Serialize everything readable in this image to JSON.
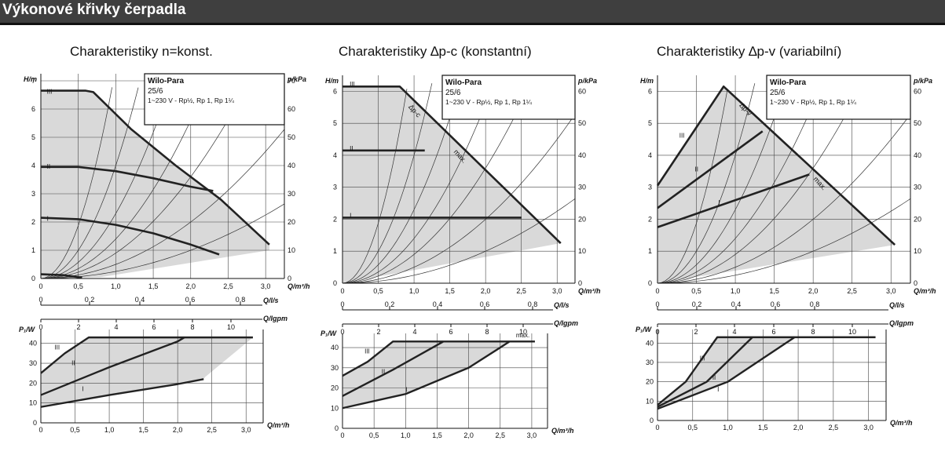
{
  "header": {
    "title": "Výkonové křivky čerpadla"
  },
  "colors": {
    "fill": "#d9d9d9",
    "curve": "#222222",
    "grid": "#444444"
  },
  "panels": [
    {
      "title": "Charakteristiky n=konst.",
      "label_box": {
        "brand": "Wilo-Para",
        "model": "25/6",
        "spec": "1~230 V - Rp½, Rp 1, Rp 1¼"
      }
    },
    {
      "title": "Charakteristiky ∆p-c (konstantní)",
      "label_box": {
        "brand": "Wilo-Para",
        "model": "25/6",
        "spec": "1~230 V - Rp½, Rp 1, Rp 1¼"
      }
    },
    {
      "title": "Charakteristiky ∆p-v (variabilní)",
      "label_box": {
        "brand": "Wilo-Para",
        "model": "25/6",
        "spec": "1~230 V - Rp½, Rp 1, Rp 1¼"
      }
    }
  ],
  "chart_data": [
    {
      "type": "line",
      "title": "Charakteristiky n=konst.",
      "ylabel": "H/m",
      "ylabel_right": "p/kPa",
      "xlabel": "Q/m³/h",
      "xlim": [
        0,
        3.25
      ],
      "ylim": [
        0,
        7.25
      ],
      "ylim_right": [
        0,
        72.5
      ],
      "xticks": [
        "0",
        "0,5",
        "1,0",
        "1,5",
        "2,0",
        "2,5",
        "3,0"
      ],
      "yticks": [
        "0",
        "1",
        "2",
        "3",
        "4",
        "5",
        "6",
        "7"
      ],
      "yticks_right": [
        "0",
        "10",
        "20",
        "30",
        "40",
        "50",
        "60",
        "70"
      ],
      "secondary_axes": [
        {
          "label": "Q/l/s",
          "ticks": [
            "0",
            "0,2",
            "0,4",
            "0,6",
            "0,8"
          ],
          "values": [
            0,
            0.2,
            0.4,
            0.6,
            0.8
          ]
        },
        {
          "label": "Q/Igpm",
          "ticks": [
            "0",
            "2",
            "4",
            "6",
            "8",
            "10"
          ],
          "values": [
            0,
            2,
            4,
            6,
            8,
            10
          ]
        }
      ],
      "series": [
        {
          "name": "III",
          "x": [
            0,
            0.6,
            0.7,
            1.2,
            1.8,
            2.4,
            3.05
          ],
          "y": [
            6.65,
            6.65,
            6.6,
            5.3,
            4.0,
            2.8,
            1.2
          ]
        },
        {
          "name": "II",
          "x": [
            0,
            0.5,
            1.0,
            1.5,
            2.0,
            2.3
          ],
          "y": [
            3.95,
            3.95,
            3.8,
            3.55,
            3.25,
            3.1
          ]
        },
        {
          "name": "I",
          "x": [
            0,
            0.5,
            1.0,
            1.5,
            2.0,
            2.38
          ],
          "y": [
            2.15,
            2.1,
            1.9,
            1.6,
            1.2,
            0.85
          ]
        }
      ],
      "power": {
        "ylabel": "P₁/W",
        "xlabel": "Q/m³/h",
        "xlim": [
          0,
          3.25
        ],
        "ylim": [
          0,
          47
        ],
        "yticks": [
          "0",
          "10",
          "20",
          "30",
          "40"
        ],
        "xticks": [
          "0",
          "0,5",
          "1,0",
          "1,5",
          "2,0",
          "2,5",
          "3,0"
        ],
        "series": [
          {
            "name": "III",
            "x": [
              0,
              0.35,
              0.7,
              3.1
            ],
            "y": [
              25,
              35,
              43,
              43
            ]
          },
          {
            "name": "II",
            "x": [
              0,
              1.0,
              2.0,
              2.1
            ],
            "y": [
              14,
              28,
              41,
              43
            ]
          },
          {
            "name": "I",
            "x": [
              0,
              1.0,
              2.0,
              2.38
            ],
            "y": [
              8,
              14,
              19.5,
              22
            ]
          }
        ]
      }
    },
    {
      "type": "line",
      "title": "Charakteristiky ∆p-c (konstantní)",
      "ylabel": "H/m",
      "ylabel_right": "p/kPa",
      "xlabel": "Q/m³/h",
      "xlim": [
        0,
        3.25
      ],
      "ylim": [
        0,
        6.5
      ],
      "ylim_right": [
        0,
        65
      ],
      "xticks": [
        "0",
        "0,5",
        "1,0",
        "1,5",
        "2,0",
        "2,5",
        "3,0"
      ],
      "yticks": [
        "0",
        "1",
        "2",
        "3",
        "4",
        "5",
        "6"
      ],
      "yticks_right": [
        "0",
        "10",
        "20",
        "30",
        "40",
        "50",
        "60"
      ],
      "annotations": [
        "∆p-c",
        "max."
      ],
      "secondary_axes": [
        {
          "label": "Q/l/s",
          "ticks": [
            "0",
            "0,2",
            "0,4",
            "0,6",
            "0,8"
          ],
          "values": [
            0,
            0.2,
            0.4,
            0.6,
            0.8
          ]
        },
        {
          "label": "Q/Igpm",
          "ticks": [
            "0",
            "2",
            "4",
            "6",
            "8",
            "10"
          ],
          "values": [
            0,
            2,
            4,
            6,
            8,
            10
          ]
        }
      ],
      "series": [
        {
          "name": "III",
          "x": [
            0,
            0.8,
            3.05
          ],
          "y": [
            6.15,
            6.15,
            1.25
          ]
        },
        {
          "name": "II",
          "x": [
            0,
            1.15
          ],
          "y": [
            4.15,
            4.15
          ]
        },
        {
          "name": "I",
          "x": [
            0,
            2.5
          ],
          "y": [
            2.05,
            2.05
          ]
        }
      ],
      "power": {
        "ylabel": "P₁/W",
        "xlabel": "Q/m³/h",
        "xlim": [
          0,
          3.25
        ],
        "ylim": [
          0,
          47
        ],
        "yticks": [
          "0",
          "10",
          "20",
          "30",
          "40"
        ],
        "xticks": [
          "0",
          "0,5",
          "1,0",
          "1,5",
          "2,0",
          "2,5",
          "3,0"
        ],
        "annotations": [
          "max."
        ],
        "series": [
          {
            "name": "III",
            "x": [
              0,
              0.4,
              0.8,
              3.05
            ],
            "y": [
              26,
              33,
              43,
              43
            ]
          },
          {
            "name": "II",
            "x": [
              0,
              0.8,
              1.6
            ],
            "y": [
              16,
              29,
              43
            ]
          },
          {
            "name": "I",
            "x": [
              0,
              1.0,
              2.0,
              2.65
            ],
            "y": [
              10,
              17,
              30,
              43
            ]
          }
        ]
      }
    },
    {
      "type": "line",
      "title": "Charakteristiky ∆p-v (variabilní)",
      "ylabel": "H/m",
      "ylabel_right": "p/kPa",
      "xlabel": "Q/m³/h",
      "xlim": [
        0,
        3.25
      ],
      "ylim": [
        0,
        6.5
      ],
      "ylim_right": [
        0,
        65
      ],
      "xticks": [
        "0",
        "0,5",
        "1,0",
        "1,5",
        "2,0",
        "2,5",
        "3,0"
      ],
      "yticks": [
        "0",
        "1",
        "2",
        "3",
        "4",
        "5",
        "6"
      ],
      "yticks_right": [
        "0",
        "10",
        "20",
        "30",
        "40",
        "50",
        "60"
      ],
      "annotations": [
        "∆p-v",
        "max."
      ],
      "secondary_axes": [
        {
          "label": "Q/l/s",
          "ticks": [
            "0",
            "0,2",
            "0,4",
            "0,6",
            "0,8"
          ],
          "values": [
            0,
            0.2,
            0.4,
            0.6,
            0.8
          ]
        },
        {
          "label": "Q/Igpm",
          "ticks": [
            "0",
            "2",
            "4",
            "6",
            "8",
            "10"
          ],
          "values": [
            0,
            2,
            4,
            6,
            8,
            10
          ]
        }
      ],
      "series": [
        {
          "name": "III",
          "x": [
            0,
            0.85,
            3.05
          ],
          "y": [
            3.05,
            6.15,
            1.2
          ]
        },
        {
          "name": "II",
          "x": [
            0,
            1.35
          ],
          "y": [
            2.35,
            4.75
          ]
        },
        {
          "name": "I",
          "x": [
            0,
            1.95
          ],
          "y": [
            1.75,
            3.4
          ]
        }
      ],
      "power": {
        "ylabel": "P₁/W",
        "xlabel": "Q/m³/h",
        "xlim": [
          0,
          3.25
        ],
        "ylim": [
          0,
          47
        ],
        "yticks": [
          "0",
          "10",
          "20",
          "30",
          "40"
        ],
        "xticks": [
          "0",
          "0,5",
          "1,0",
          "1,5",
          "2,0",
          "2,5",
          "3,0"
        ],
        "series": [
          {
            "name": "III",
            "x": [
              0,
              0.4,
              0.85,
              3.1
            ],
            "y": [
              8,
              20,
              43,
              43
            ]
          },
          {
            "name": "II",
            "x": [
              0,
              0.7,
              1.35
            ],
            "y": [
              7,
              20,
              43
            ]
          },
          {
            "name": "I",
            "x": [
              0,
              1.0,
              1.95
            ],
            "y": [
              6,
              20,
              43
            ]
          }
        ]
      }
    }
  ]
}
